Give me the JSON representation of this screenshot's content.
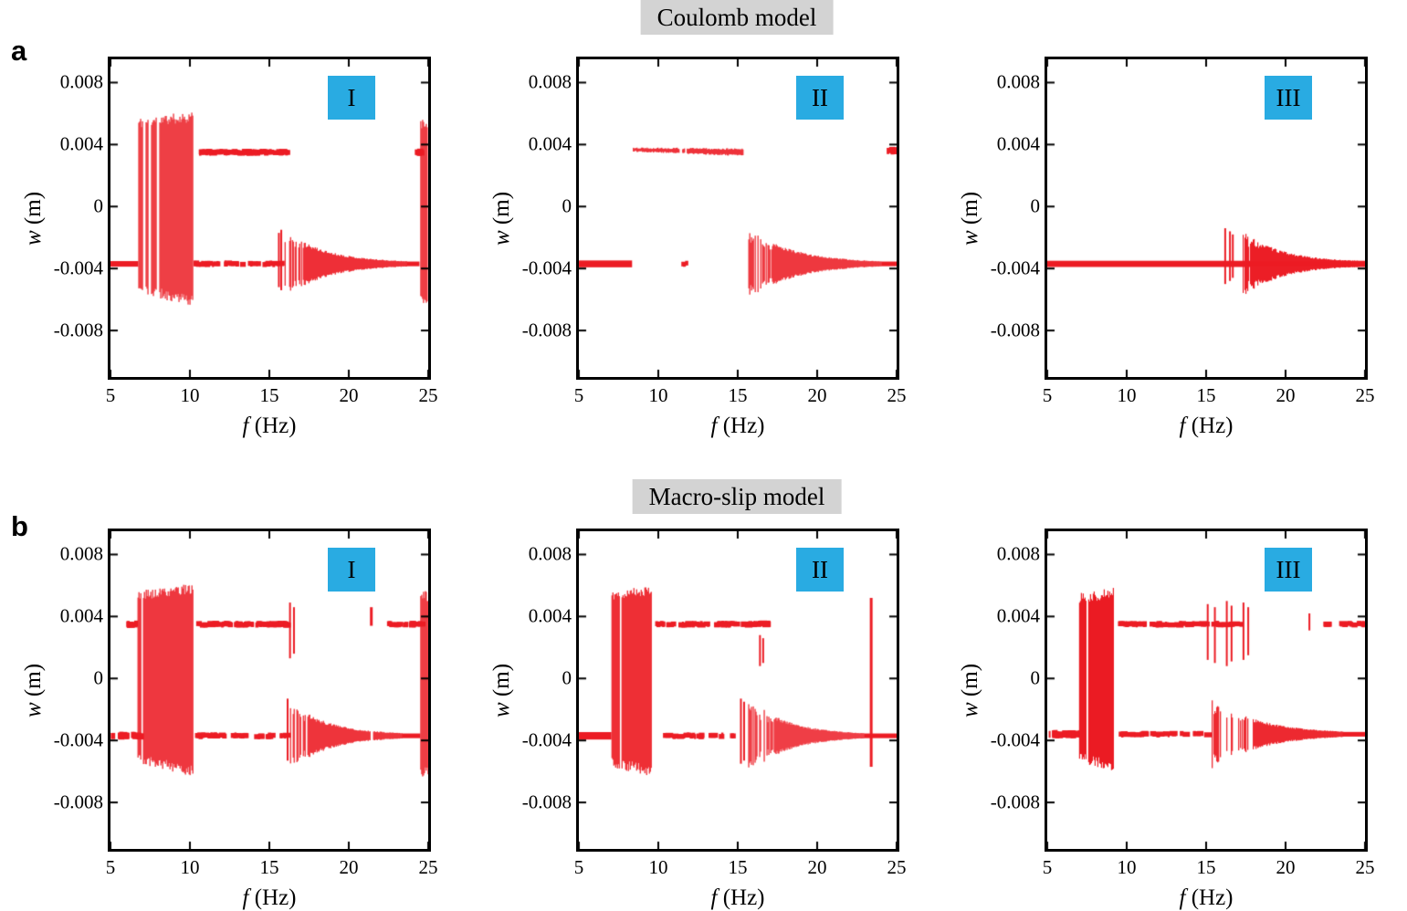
{
  "colors": {
    "data_red": "#ec1c24",
    "badge_blue": "#29abe2",
    "title_bg": "#d3d3d3",
    "axis_black": "#000000"
  },
  "header": {
    "row_a_letter": "a",
    "row_b_letter": "b",
    "row_a_title": "Coulomb model",
    "row_b_title": "Macro-slip model"
  },
  "chart_data": [
    {
      "type": "scatter",
      "model": "Coulomb model",
      "panel_label": "I",
      "xlabel": "f (Hz)",
      "xlabel_var": "f",
      "xlabel_unit": " (Hz)",
      "ylabel": "w (m)",
      "ylabel_var": "w",
      "ylabel_unit": " (m)",
      "xlim": [
        5,
        25
      ],
      "ylim": [
        -0.011,
        0.0095
      ],
      "xticks": [
        5,
        10,
        15,
        20,
        25
      ],
      "xtick_labels": [
        "5",
        "10",
        "15",
        "20",
        "25"
      ],
      "yticks": [
        0.008,
        0.004,
        0,
        -0.004,
        -0.008
      ],
      "ytick_labels": [
        "0.008",
        "0.004",
        "0",
        "-0.004",
        "-0.008"
      ],
      "grid": false,
      "seed": 11,
      "features": [
        {
          "type": "hline",
          "y": -0.0037,
          "x0": 5.0,
          "x1": 6.75,
          "h": 0.00018
        },
        {
          "type": "chaos",
          "x0": 6.75,
          "x1": 10.15,
          "top0": 0.0054,
          "top1": 0.0058,
          "bot0": -0.0053,
          "bot1": -0.0061,
          "rag": 0.0007,
          "gaps": [
            7.1,
            7.45,
            7.95
          ]
        },
        {
          "type": "dashes",
          "y": 0.0035,
          "x0": 10.2,
          "x1": 16.1,
          "n": 80,
          "h": 0.00016
        },
        {
          "type": "dashes",
          "y": -0.0037,
          "x0": 10.2,
          "x1": 15.85,
          "n": 34,
          "h": 0.00016
        },
        {
          "type": "spike",
          "x": 15.6,
          "y0": -0.0052,
          "y1": -0.0017,
          "w": 2
        },
        {
          "type": "spike",
          "x": 15.75,
          "y0": -0.0054,
          "y1": -0.0015,
          "w": 2
        },
        {
          "type": "funnel",
          "x0": 15.9,
          "x1": 23.65,
          "yc": -0.0037,
          "w0": 0.002,
          "w1": 0.00016,
          "decay": 3.0,
          "sparse_until": 0.16,
          "sparse_p": 0.3
        },
        {
          "type": "hline",
          "y": -0.0037,
          "x0": 23.65,
          "x1": 24.45,
          "h": 0.00015
        },
        {
          "type": "dashes",
          "y": 0.0035,
          "x0": 24.1,
          "x1": 24.5,
          "n": 6,
          "h": 0.00018
        },
        {
          "type": "vband",
          "x0": 24.5,
          "x1": 24.95,
          "y0": -0.006,
          "y1": 0.0054,
          "rag": 0.0007
        }
      ]
    },
    {
      "type": "scatter",
      "model": "Coulomb model",
      "panel_label": "II",
      "xlabel": "f (Hz)",
      "xlabel_var": "f",
      "xlabel_unit": " (Hz)",
      "ylabel": "w (m)",
      "ylabel_var": "w",
      "ylabel_unit": " (m)",
      "xlim": [
        5,
        25
      ],
      "ylim": [
        -0.011,
        0.0095
      ],
      "xticks": [
        5,
        10,
        15,
        20,
        25
      ],
      "xtick_labels": [
        "5",
        "10",
        "15",
        "20",
        "25"
      ],
      "yticks": [
        0.008,
        0.004,
        0,
        -0.004,
        -0.008
      ],
      "ytick_labels": [
        "0.008",
        "0.004",
        "0",
        "-0.004",
        "-0.008"
      ],
      "grid": false,
      "seed": 22,
      "features": [
        {
          "type": "hline",
          "y": -0.0037,
          "x0": 5.0,
          "x1": 8.35,
          "h": 0.00022
        },
        {
          "type": "chaos",
          "x0": 8.4,
          "x1": 15.35,
          "top0": 0.00378,
          "top1": 0.0037,
          "bot0": 0.00358,
          "bot1": 0.0033,
          "rag": 0.0001,
          "gaps": [
            11.4,
            11.7
          ]
        },
        {
          "type": "dashes",
          "y": -0.0037,
          "x0": 11.45,
          "x1": 11.75,
          "n": 3,
          "h": 0.00015
        },
        {
          "type": "funnel",
          "x0": 15.55,
          "x1": 24.05,
          "yc": -0.0037,
          "w0": 0.00215,
          "w1": 0.00015,
          "decay": 3.0,
          "sparse_until": 0.2,
          "sparse_p": 0.35
        },
        {
          "type": "hline",
          "y": -0.0037,
          "x0": 24.05,
          "x1": 25.0,
          "h": 0.00015
        },
        {
          "type": "dashes",
          "y": 0.0036,
          "x0": 24.35,
          "x1": 24.95,
          "n": 10,
          "h": 0.0002
        }
      ]
    },
    {
      "type": "scatter",
      "model": "Coulomb model",
      "panel_label": "III",
      "xlabel": "f (Hz)",
      "xlabel_var": "f",
      "xlabel_unit": " (Hz)",
      "ylabel": "w (m)",
      "ylabel_var": "w",
      "ylabel_unit": " (m)",
      "xlim": [
        5,
        25
      ],
      "ylim": [
        -0.011,
        0.0095
      ],
      "xticks": [
        5,
        10,
        15,
        20,
        25
      ],
      "xtick_labels": [
        "5",
        "10",
        "15",
        "20",
        "25"
      ],
      "yticks": [
        0.008,
        0.004,
        0,
        -0.004,
        -0.008
      ],
      "ytick_labels": [
        "0.008",
        "0.004",
        "0",
        "-0.004",
        "-0.008"
      ],
      "grid": false,
      "seed": 33,
      "features": [
        {
          "type": "hline",
          "y": -0.0037,
          "x0": 5.0,
          "x1": 25.0,
          "h": 0.0002
        },
        {
          "type": "spike",
          "x": 16.2,
          "y0": -0.005,
          "y1": -0.0014,
          "w": 2
        },
        {
          "type": "spike",
          "x": 16.5,
          "y0": -0.0048,
          "y1": -0.0016,
          "w": 2
        },
        {
          "type": "spike",
          "x": 16.68,
          "y0": -0.0046,
          "y1": -0.0018,
          "w": 2
        },
        {
          "type": "funnel",
          "x0": 17.3,
          "x1": 24.6,
          "yc": -0.0037,
          "w0": 0.0019,
          "w1": 0.00018,
          "decay": 3.0,
          "sparse_until": 0.14,
          "sparse_p": 0.3
        }
      ]
    },
    {
      "type": "scatter",
      "model": "Macro-slip model",
      "panel_label": "I",
      "xlabel": "f (Hz)",
      "xlabel_var": "f",
      "xlabel_unit": " (Hz)",
      "ylabel": "w (m)",
      "ylabel_var": "w",
      "ylabel_unit": " (m)",
      "xlim": [
        5,
        25
      ],
      "ylim": [
        -0.011,
        0.0095
      ],
      "xticks": [
        5,
        10,
        15,
        20,
        25
      ],
      "xtick_labels": [
        "5",
        "10",
        "15",
        "20",
        "25"
      ],
      "yticks": [
        0.008,
        0.004,
        0,
        -0.004,
        -0.008
      ],
      "ytick_labels": [
        "0.008",
        "0.004",
        "0",
        "-0.004",
        "-0.008"
      ],
      "grid": false,
      "seed": 44,
      "features": [
        {
          "type": "dashes",
          "y": -0.0037,
          "x0": 5.0,
          "x1": 6.7,
          "n": 16,
          "h": 0.0002
        },
        {
          "type": "dashes",
          "y": 0.0035,
          "x0": 5.85,
          "x1": 6.6,
          "n": 7,
          "h": 0.00018
        },
        {
          "type": "chaos",
          "x0": 6.7,
          "x1": 10.2,
          "top0": 0.0054,
          "top1": 0.0058,
          "bot0": -0.0052,
          "bot1": -0.006,
          "rag": 0.0007,
          "gaps": [
            6.95
          ]
        },
        {
          "type": "dashes",
          "y": 0.0035,
          "x0": 10.3,
          "x1": 16.05,
          "n": 72,
          "h": 0.00016
        },
        {
          "type": "dashes",
          "y": -0.0037,
          "x0": 10.3,
          "x1": 16.0,
          "n": 36,
          "h": 0.00016
        },
        {
          "type": "spike",
          "x": 16.3,
          "y0": 0.0013,
          "y1": 0.0049,
          "w": 2
        },
        {
          "type": "spike",
          "x": 16.55,
          "y0": 0.0016,
          "y1": 0.0046,
          "w": 2
        },
        {
          "type": "spike",
          "x": 16.15,
          "y0": -0.0053,
          "y1": -0.0013,
          "w": 2
        },
        {
          "type": "funnel",
          "x0": 16.3,
          "x1": 23.35,
          "yc": -0.0037,
          "w0": 0.002,
          "w1": 0.00016,
          "decay": 3.0,
          "sparse_until": 0.15,
          "sparse_p": 0.3,
          "gaps": [
            21.4
          ]
        },
        {
          "type": "spike",
          "x": 21.42,
          "y0": 0.0034,
          "y1": 0.0046,
          "w": 3
        },
        {
          "type": "dashes",
          "y": 0.0035,
          "x0": 22.4,
          "x1": 24.45,
          "n": 18,
          "h": 0.00016
        },
        {
          "type": "hline",
          "y": -0.0037,
          "x0": 23.35,
          "x1": 24.5,
          "h": 0.00015
        },
        {
          "type": "vband",
          "x0": 24.5,
          "x1": 24.98,
          "y0": -0.006,
          "y1": 0.0053,
          "rag": 0.0007
        }
      ]
    },
    {
      "type": "scatter",
      "model": "Macro-slip model",
      "panel_label": "II",
      "xlabel": "f (Hz)",
      "xlabel_var": "f",
      "xlabel_unit": " (Hz)",
      "ylabel": "w (m)",
      "ylabel_var": "w",
      "ylabel_unit": " (m)",
      "xlim": [
        5,
        25
      ],
      "ylim": [
        -0.011,
        0.0095
      ],
      "xticks": [
        5,
        10,
        15,
        20,
        25
      ],
      "xtick_labels": [
        "5",
        "10",
        "15",
        "20",
        "25"
      ],
      "yticks": [
        0.008,
        0.004,
        0,
        -0.004,
        -0.008
      ],
      "ytick_labels": [
        "0.008",
        "0.004",
        "0",
        "-0.004",
        "-0.008"
      ],
      "grid": false,
      "seed": 55,
      "features": [
        {
          "type": "hline",
          "y": -0.0037,
          "x0": 5.0,
          "x1": 7.05,
          "h": 0.00024
        },
        {
          "type": "chaos",
          "x0": 7.05,
          "x1": 9.55,
          "top0": 0.0054,
          "top1": 0.0057,
          "bot0": -0.0054,
          "bot1": -0.006,
          "rag": 0.0007,
          "gaps": [
            7.6
          ]
        },
        {
          "type": "dashes",
          "y": 0.0035,
          "x0": 9.7,
          "x1": 14.8,
          "n": 44,
          "h": 0.00016
        },
        {
          "type": "dashes",
          "y": -0.0037,
          "x0": 9.9,
          "x1": 14.6,
          "n": 22,
          "h": 0.00016
        },
        {
          "type": "dashes",
          "y": 0.0035,
          "x0": 15.1,
          "x1": 16.7,
          "n": 14,
          "h": 0.00018
        },
        {
          "type": "spike",
          "x": 15.2,
          "y0": -0.0055,
          "y1": -0.0013,
          "w": 2
        },
        {
          "type": "spike",
          "x": 15.4,
          "y0": -0.0053,
          "y1": -0.0015,
          "w": 2
        },
        {
          "type": "spike",
          "x": 16.4,
          "y0": 0.0008,
          "y1": 0.0028,
          "w": 2
        },
        {
          "type": "spike",
          "x": 16.6,
          "y0": 0.001,
          "y1": 0.0026,
          "w": 2
        },
        {
          "type": "funnel",
          "x0": 15.6,
          "x1": 22.95,
          "yc": -0.0037,
          "w0": 0.0022,
          "w1": 0.00016,
          "decay": 3.0,
          "sparse_until": 0.22,
          "sparse_p": 0.35
        },
        {
          "type": "spike",
          "x": 23.4,
          "y0": -0.0057,
          "y1": 0.0052,
          "w": 3
        },
        {
          "type": "hline",
          "y": -0.0037,
          "x0": 22.95,
          "x1": 25.0,
          "h": 0.00015
        }
      ]
    },
    {
      "type": "scatter",
      "model": "Macro-slip model",
      "panel_label": "III",
      "xlabel": "f (Hz)",
      "xlabel_var": "f",
      "xlabel_unit": " (Hz)",
      "ylabel": "w (m)",
      "ylabel_var": "w",
      "ylabel_unit": " (m)",
      "xlim": [
        5,
        25
      ],
      "ylim": [
        -0.011,
        0.0095
      ],
      "xticks": [
        5,
        10,
        15,
        20,
        25
      ],
      "xtick_labels": [
        "5",
        "10",
        "15",
        "20",
        "25"
      ],
      "yticks": [
        0.008,
        0.004,
        0,
        -0.004,
        -0.008
      ],
      "ytick_labels": [
        "0.008",
        "0.004",
        "0",
        "-0.004",
        "-0.008"
      ],
      "grid": false,
      "seed": 66,
      "features": [
        {
          "type": "dashes",
          "y": -0.0036,
          "x0": 5.0,
          "x1": 7.0,
          "n": 18,
          "h": 0.00022
        },
        {
          "type": "chaos",
          "x0": 7.0,
          "x1": 9.15,
          "top0": 0.0052,
          "top1": 0.0055,
          "bot0": -0.0051,
          "bot1": -0.0056,
          "rag": 0.0007,
          "gaps": [
            7.5
          ]
        },
        {
          "type": "dashes",
          "y": 0.0035,
          "x0": 9.3,
          "x1": 14.9,
          "n": 42,
          "h": 0.00016
        },
        {
          "type": "dashes",
          "y": -0.0036,
          "x0": 9.3,
          "x1": 14.9,
          "n": 28,
          "h": 0.00016
        },
        {
          "type": "spike",
          "x": 15.1,
          "y0": 0.0012,
          "y1": 0.0048,
          "w": 2
        },
        {
          "type": "spike",
          "x": 15.55,
          "y0": 0.001,
          "y1": 0.0046,
          "w": 2
        },
        {
          "type": "spike",
          "x": 16.3,
          "y0": 0.0008,
          "y1": 0.005,
          "w": 2
        },
        {
          "type": "spike",
          "x": 16.6,
          "y0": 0.0011,
          "y1": 0.0047,
          "w": 2
        },
        {
          "type": "spike",
          "x": 17.35,
          "y0": 0.0012,
          "y1": 0.0049,
          "w": 2
        },
        {
          "type": "spike",
          "x": 17.65,
          "y0": 0.0015,
          "y1": 0.0046,
          "w": 2
        },
        {
          "type": "dashes",
          "y": 0.0035,
          "x0": 15.0,
          "x1": 18.0,
          "n": 12,
          "h": 0.00016
        },
        {
          "type": "funnel",
          "x0": 15.35,
          "x1": 23.6,
          "yc": -0.0036,
          "w0": 0.0021,
          "w1": 0.00016,
          "decay": 2.8,
          "sparse_until": 0.3,
          "sparse_p": 0.42,
          "gaps": [
            16.1,
            16.9,
            17.8
          ]
        },
        {
          "type": "spike",
          "x": 21.5,
          "y0": 0.0031,
          "y1": 0.0042,
          "w": 2
        },
        {
          "type": "dashes",
          "y": 0.0035,
          "x0": 22.3,
          "x1": 25.0,
          "n": 16,
          "h": 0.00016
        },
        {
          "type": "hline",
          "y": -0.0036,
          "x0": 23.6,
          "x1": 25.0,
          "h": 0.00015
        }
      ]
    }
  ]
}
